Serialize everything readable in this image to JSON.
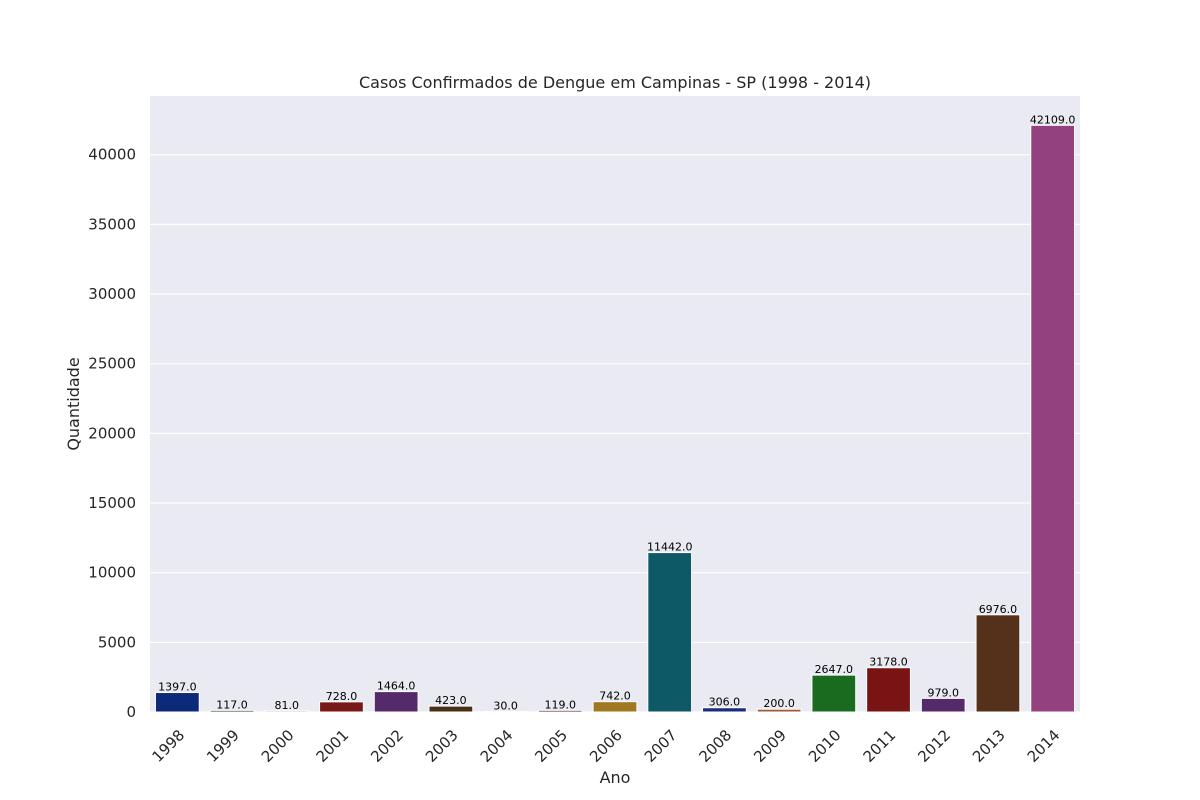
{
  "chart_data": {
    "type": "bar",
    "title": "Casos Confirmados de Dengue em Campinas - SP (1998 - 2014)",
    "xlabel": "Ano",
    "ylabel": "Quantidade",
    "categories": [
      "1998",
      "1999",
      "2000",
      "2001",
      "2002",
      "2003",
      "2004",
      "2005",
      "2006",
      "2007",
      "2008",
      "2009",
      "2010",
      "2011",
      "2012",
      "2013",
      "2014"
    ],
    "values": [
      1397.0,
      117.0,
      81.0,
      728.0,
      1464.0,
      423.0,
      30.0,
      119.0,
      742.0,
      11442.0,
      306.0,
      200.0,
      2647.0,
      3178.0,
      979.0,
      6976.0,
      42109.0
    ],
    "value_labels": [
      "1397.0",
      "117.0",
      "81.0",
      "728.0",
      "1464.0",
      "423.0",
      "30.0",
      "119.0",
      "742.0",
      "11442.0",
      "306.0",
      "200.0",
      "2647.0",
      "3178.0",
      "979.0",
      "6976.0",
      "42109.0"
    ],
    "colors": [
      "#0d2a78",
      "#2a4a2a",
      "#6a4a1a",
      "#7a1818",
      "#552a6a",
      "#4a3016",
      "#1a1a4a",
      "#5a2a2a",
      "#a07820",
      "#0d5a66",
      "#18307a",
      "#a05a3a",
      "#1a6a20",
      "#7a1414",
      "#552a6a",
      "#55301a",
      "#94427f"
    ],
    "yticks": [
      0,
      5000,
      10000,
      15000,
      20000,
      25000,
      30000,
      35000,
      40000
    ],
    "ylim": [
      0,
      44214
    ],
    "grid": true,
    "background": "#e9eaf2"
  }
}
